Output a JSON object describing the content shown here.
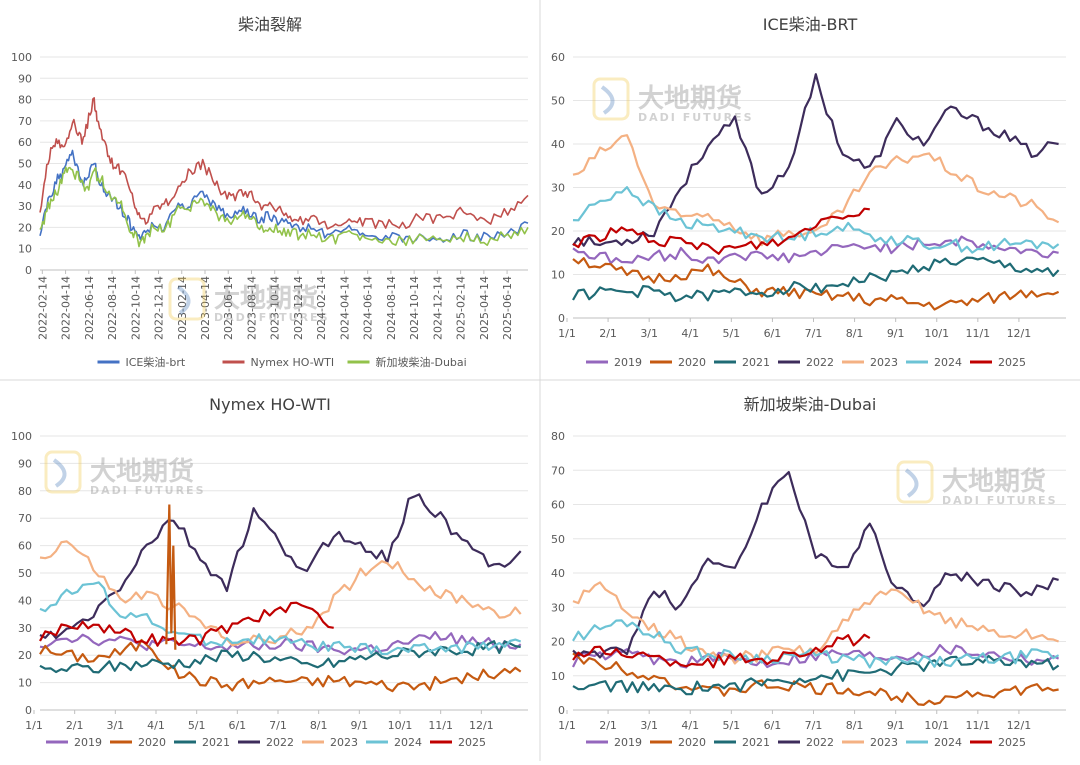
{
  "colors": {
    "ice": "#4472C4",
    "nymex": "#C0504D",
    "sg": "#92C24A",
    "y2019": "#9467BD",
    "y2020": "#C55A11",
    "y2021": "#1F6B75",
    "y2022": "#3D2C5B",
    "y2023": "#F4B183",
    "y2024": "#6CC3D5",
    "y2025": "#C00000",
    "grid": "#e6e6e6",
    "axis": "#bfbfbf",
    "text": "#595959"
  },
  "watermark": {
    "cn": "大地期货",
    "en": "DADI FUTURES"
  },
  "chart_data": [
    {
      "type": "line",
      "title": "柴油裂解",
      "ylim": [
        0,
        100
      ],
      "yticks": [
        "0",
        "10",
        "20",
        "30",
        "40",
        "50",
        "60",
        "70",
        "80",
        "90",
        "100"
      ],
      "xticks": [
        "2022-02-14",
        "2022-04-14",
        "2022-06-14",
        "2022-08-14",
        "2022-10-14",
        "2022-12-14",
        "2023-02-14",
        "2023-04-14",
        "2023-06-14",
        "2023-08-14",
        "2023-10-14",
        "2023-12-14",
        "2024-02-14",
        "2024-04-14",
        "2024-06-14",
        "2024-08-14",
        "2024-10-14",
        "2024-12-14",
        "2025-02-14",
        "2025-04-14",
        "2025-06-14"
      ],
      "x_start": "2022-02-14",
      "x_end": "2025-07-31",
      "legend": "bottom",
      "series": [
        {
          "name": "ICE柴油-brt",
          "color": "ice",
          "t": [
            0,
            2,
            4,
            6,
            8,
            10,
            12,
            14,
            16,
            18,
            20,
            21,
            23,
            25,
            27,
            29,
            31,
            33,
            35,
            37,
            39,
            42,
            45,
            48,
            51,
            54,
            57,
            60,
            63,
            66,
            69,
            72,
            75,
            78,
            81,
            84,
            87,
            90,
            93,
            96,
            100,
            104,
            108,
            112,
            116,
            120,
            125,
            130,
            135,
            140,
            145,
            150,
            155,
            160,
            165,
            170,
            175,
            180
          ],
          "v": [
            15,
            28,
            35,
            42,
            45,
            50,
            55,
            48,
            40,
            45,
            52,
            44,
            40,
            35,
            34,
            30,
            27,
            22,
            17,
            14,
            18,
            22,
            20,
            24,
            30,
            28,
            35,
            38,
            32,
            28,
            25,
            27,
            30,
            26,
            24,
            25,
            23,
            22,
            20,
            19,
            21,
            17,
            16,
            18,
            19,
            17,
            16,
            15,
            14,
            16,
            15,
            15,
            17,
            16,
            15,
            16,
            18,
            22
          ]
        },
        {
          "name": "Nymex HO-WTI",
          "color": "nymex",
          "t": [
            0,
            2,
            4,
            6,
            8,
            10,
            12,
            14,
            16,
            18,
            20,
            21,
            23,
            25,
            27,
            29,
            31,
            33,
            35,
            37,
            39,
            42,
            45,
            48,
            51,
            54,
            57,
            60,
            63,
            66,
            69,
            72,
            75,
            78,
            81,
            84,
            87,
            90,
            93,
            96,
            100,
            104,
            108,
            112,
            116,
            120,
            125,
            130,
            135,
            140,
            145,
            150,
            155,
            160,
            165,
            170,
            175,
            180
          ],
          "v": [
            28,
            45,
            55,
            60,
            58,
            62,
            70,
            65,
            60,
            72,
            80,
            70,
            62,
            55,
            50,
            48,
            45,
            38,
            30,
            26,
            24,
            28,
            30,
            32,
            40,
            44,
            48,
            50,
            44,
            38,
            34,
            34,
            37,
            35,
            30,
            30,
            28,
            27,
            25,
            23,
            24,
            22,
            21,
            23,
            25,
            22,
            22,
            21,
            20,
            26,
            24,
            23,
            28,
            25,
            23,
            26,
            30,
            35
          ]
        },
        {
          "name": "新加坡柴油-Dubai",
          "color": "sg",
          "t": [
            0,
            2,
            4,
            6,
            8,
            10,
            12,
            14,
            16,
            18,
            20,
            21,
            23,
            25,
            27,
            29,
            31,
            33,
            35,
            37,
            39,
            42,
            45,
            48,
            51,
            54,
            57,
            60,
            63,
            66,
            69,
            72,
            75,
            78,
            81,
            84,
            87,
            90,
            93,
            96,
            100,
            104,
            108,
            112,
            116,
            120,
            125,
            130,
            135,
            140,
            145,
            150,
            155,
            160,
            165,
            170,
            175,
            180
          ],
          "v": [
            17,
            26,
            33,
            36,
            42,
            48,
            45,
            45,
            40,
            38,
            48,
            44,
            42,
            35,
            33,
            32,
            28,
            20,
            16,
            12,
            16,
            20,
            19,
            22,
            28,
            27,
            32,
            33,
            29,
            25,
            22,
            24,
            27,
            24,
            20,
            20,
            19,
            18,
            18,
            16,
            17,
            15,
            14,
            16,
            16,
            15,
            14,
            14,
            14,
            15,
            15,
            14,
            16,
            15,
            14,
            16,
            17,
            20
          ]
        }
      ]
    },
    {
      "type": "line",
      "title": "ICE柴油-BRT",
      "ylim": [
        0,
        60
      ],
      "yticks": [
        "0",
        "10",
        "20",
        "30",
        "40",
        "50",
        "60"
      ],
      "xticks": [
        "1/1",
        "2/1",
        "3/1",
        "4/1",
        "5/1",
        "6/1",
        "7/1",
        "8/1",
        "9/1",
        "10/1",
        "11/1",
        "12/1"
      ],
      "legend": "bottom",
      "series": [
        {
          "name": "2019",
          "color": "y2019",
          "v": [
            16,
            14,
            13,
            14,
            15,
            13,
            15,
            14,
            14,
            15,
            16,
            17,
            16,
            17,
            18,
            17,
            16,
            15,
            15
          ]
        },
        {
          "name": "2020",
          "color": "y2020",
          "v": [
            14,
            12,
            10,
            9,
            10,
            11,
            8,
            6,
            6,
            5,
            5,
            4,
            4,
            3,
            3,
            4,
            5,
            6,
            6
          ]
        },
        {
          "name": "2021",
          "color": "y2021",
          "v": [
            5,
            6,
            6,
            6,
            5,
            5,
            6,
            6,
            7,
            7,
            8,
            9,
            10,
            12,
            13,
            13,
            12,
            11,
            11
          ]
        },
        {
          "name": "2022",
          "color": "y2022",
          "v": [
            18,
            17,
            18,
            20,
            30,
            40,
            45,
            28,
            35,
            55,
            38,
            34,
            45,
            40,
            48,
            45,
            42,
            38,
            40
          ]
        },
        {
          "name": "2023",
          "color": "y2023",
          "v": [
            32,
            38,
            42,
            26,
            23,
            24,
            21,
            18,
            20,
            19,
            25,
            33,
            36,
            38,
            34,
            30,
            28,
            26,
            22
          ]
        },
        {
          "name": "2024",
          "color": "y2024",
          "v": [
            22,
            27,
            30,
            25,
            22,
            21,
            20,
            19,
            18,
            20,
            21,
            19,
            18,
            17,
            17,
            16,
            17,
            17,
            17
          ]
        },
        {
          "name": "2025",
          "color": "y2025",
          "v": [
            17,
            19,
            20,
            18,
            17,
            16,
            16,
            17,
            18,
            22,
            24,
            25
          ]
        }
      ]
    },
    {
      "type": "line",
      "title": "Nymex HO-WTI",
      "ylim": [
        0,
        100
      ],
      "yticks": [
        "0",
        "10",
        "20",
        "30",
        "40",
        "50",
        "60",
        "70",
        "80",
        "90",
        "100"
      ],
      "xticks": [
        "1/1",
        "2/1",
        "3/1",
        "4/1",
        "5/1",
        "6/1",
        "7/1",
        "8/1",
        "9/1",
        "10/1",
        "11/1",
        "12/1"
      ],
      "legend": "bottom",
      "series": [
        {
          "name": "2019",
          "color": "y2019",
          "v": [
            24,
            27,
            26,
            25,
            24,
            24,
            23,
            23,
            23,
            24,
            23,
            22,
            22,
            23,
            25,
            27,
            25,
            24,
            24
          ]
        },
        {
          "name": "2020",
          "color": "y2020",
          "v": [
            22,
            20,
            19,
            21,
            25,
            14,
            11,
            9,
            10,
            11,
            10,
            11,
            10,
            9,
            9,
            10,
            12,
            13,
            14
          ]
        },
        {
          "name": "2021",
          "color": "y2021",
          "v": [
            14,
            15,
            15,
            16,
            17,
            17,
            18,
            20,
            20,
            18,
            16,
            17,
            19,
            20,
            21,
            22,
            22,
            23,
            23
          ]
        },
        {
          "name": "2022",
          "color": "y2022",
          "v": [
            26,
            28,
            35,
            45,
            60,
            70,
            55,
            45,
            72,
            60,
            50,
            65,
            60,
            55,
            80,
            70,
            60,
            52,
            58
          ]
        },
        {
          "name": "2023",
          "color": "y2023",
          "v": [
            55,
            62,
            52,
            40,
            42,
            38,
            32,
            26,
            25,
            26,
            30,
            40,
            50,
            55,
            48,
            42,
            40,
            36,
            35
          ]
        },
        {
          "name": "2024",
          "color": "y2024",
          "v": [
            37,
            42,
            47,
            36,
            33,
            28,
            26,
            25,
            26,
            25,
            24,
            23,
            22,
            22,
            22,
            23,
            23,
            24,
            25
          ]
        },
        {
          "name": "2025",
          "color": "y2025",
          "v": [
            26,
            31,
            32,
            28,
            26,
            25,
            26,
            30,
            34,
            36,
            38,
            30
          ]
        }
      ]
    },
    {
      "type": "line",
      "title": "新加坡柴油-Dubai",
      "ylim": [
        0,
        80
      ],
      "yticks": [
        "0",
        "10",
        "20",
        "30",
        "40",
        "50",
        "60",
        "70",
        "80"
      ],
      "xticks": [
        "1/1",
        "2/1",
        "3/1",
        "4/1",
        "5/1",
        "6/1",
        "7/1",
        "8/1",
        "9/1",
        "10/1",
        "11/1",
        "12/1"
      ],
      "legend": "bottom",
      "series": [
        {
          "name": "2019",
          "color": "y2019",
          "v": [
            14,
            16,
            16,
            15,
            14,
            15,
            15,
            14,
            15,
            16,
            17,
            16,
            16,
            17,
            18,
            17,
            16,
            15,
            15
          ]
        },
        {
          "name": "2020",
          "color": "y2020",
          "v": [
            15,
            14,
            12,
            10,
            7,
            5,
            6,
            7,
            7,
            6,
            6,
            5,
            4,
            3,
            4,
            5,
            5,
            6,
            6
          ]
        },
        {
          "name": "2021",
          "color": "y2021",
          "v": [
            6,
            7,
            7,
            6,
            6,
            7,
            7,
            8,
            9,
            10,
            10,
            11,
            12,
            13,
            14,
            14,
            14,
            14,
            13
          ]
        },
        {
          "name": "2022",
          "color": "y2022",
          "v": [
            17,
            16,
            18,
            35,
            30,
            45,
            40,
            60,
            70,
            45,
            40,
            55,
            35,
            32,
            40,
            38,
            36,
            34,
            38
          ]
        },
        {
          "name": "2023",
          "color": "y2023",
          "v": [
            32,
            36,
            30,
            24,
            20,
            16,
            15,
            16,
            18,
            17,
            25,
            32,
            34,
            30,
            26,
            24,
            22,
            22,
            20
          ]
        },
        {
          "name": "2024",
          "color": "y2024",
          "v": [
            21,
            24,
            26,
            22,
            18,
            16,
            16,
            15,
            16,
            16,
            15,
            14,
            14,
            14,
            14,
            15,
            15,
            16,
            16
          ]
        },
        {
          "name": "2025",
          "color": "y2025",
          "v": [
            16,
            17,
            17,
            15,
            14,
            14,
            15,
            15,
            16,
            18,
            20,
            21
          ]
        }
      ]
    }
  ]
}
